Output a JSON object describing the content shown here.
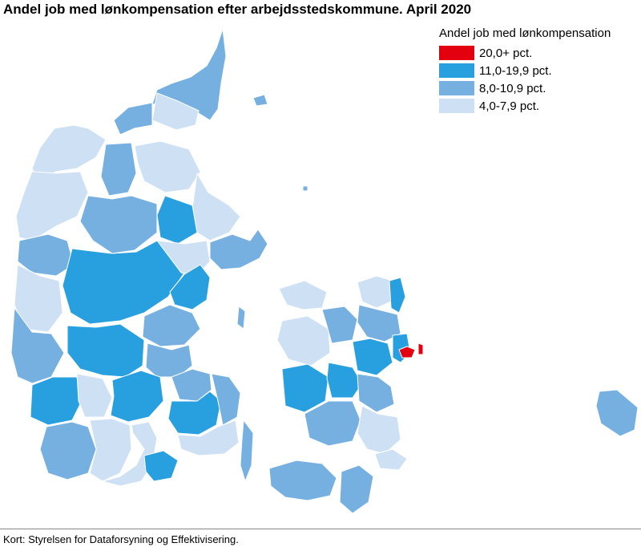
{
  "title": "Andel job med lønkompensation efter arbejdsstedskommune. April 2020",
  "legend": {
    "title": "Andel job med lønkompensation",
    "items": [
      {
        "label": "20,0+ pct.",
        "color": "#e3000f"
      },
      {
        "label": "11,0-19,9 pct.",
        "color": "#28a0e0"
      },
      {
        "label": "8,0-10,9 pct.",
        "color": "#76b0e0"
      },
      {
        "label": "4,0-7,9 pct.",
        "color": "#cde0f4"
      }
    ]
  },
  "source": "Kort: Styrelsen for Dataforsyning og Effektivisering."
}
